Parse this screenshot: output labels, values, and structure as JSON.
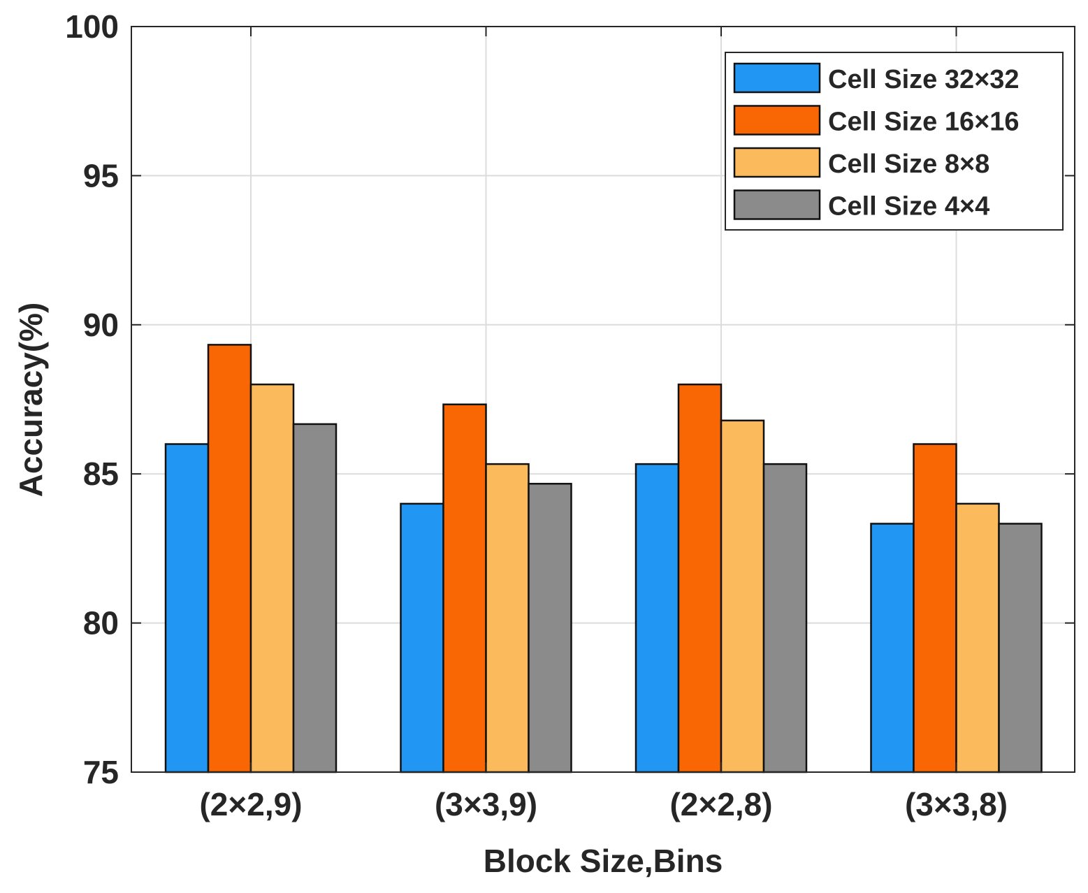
{
  "chart_data": {
    "type": "bar",
    "title": "",
    "xlabel": "Block Size,Bins",
    "ylabel": "Accuracy(%)",
    "ylim": [
      75,
      100
    ],
    "yticks": [
      "75",
      "80",
      "85",
      "90",
      "95",
      "100"
    ],
    "grid": true,
    "legend_position": "top-right",
    "categories": [
      "(2×2,9)",
      "(3×3,9)",
      "(2×2,8)",
      "(3×3,8)"
    ],
    "series": [
      {
        "name": "Cell Size 32×32",
        "color": "#2196F3",
        "values": [
          86.0,
          84.0,
          85.33,
          83.33
        ]
      },
      {
        "name": "Cell Size 16×16",
        "color": "#F96704",
        "values": [
          89.33,
          87.33,
          88.0,
          86.0
        ]
      },
      {
        "name": "Cell Size 8×8",
        "color": "#FBBB5C",
        "values": [
          88.0,
          85.33,
          86.79,
          84.0
        ]
      },
      {
        "name": "Cell Size 4×4",
        "color": "#8B8B8B",
        "values": [
          86.67,
          84.67,
          85.33,
          83.33
        ]
      }
    ]
  }
}
